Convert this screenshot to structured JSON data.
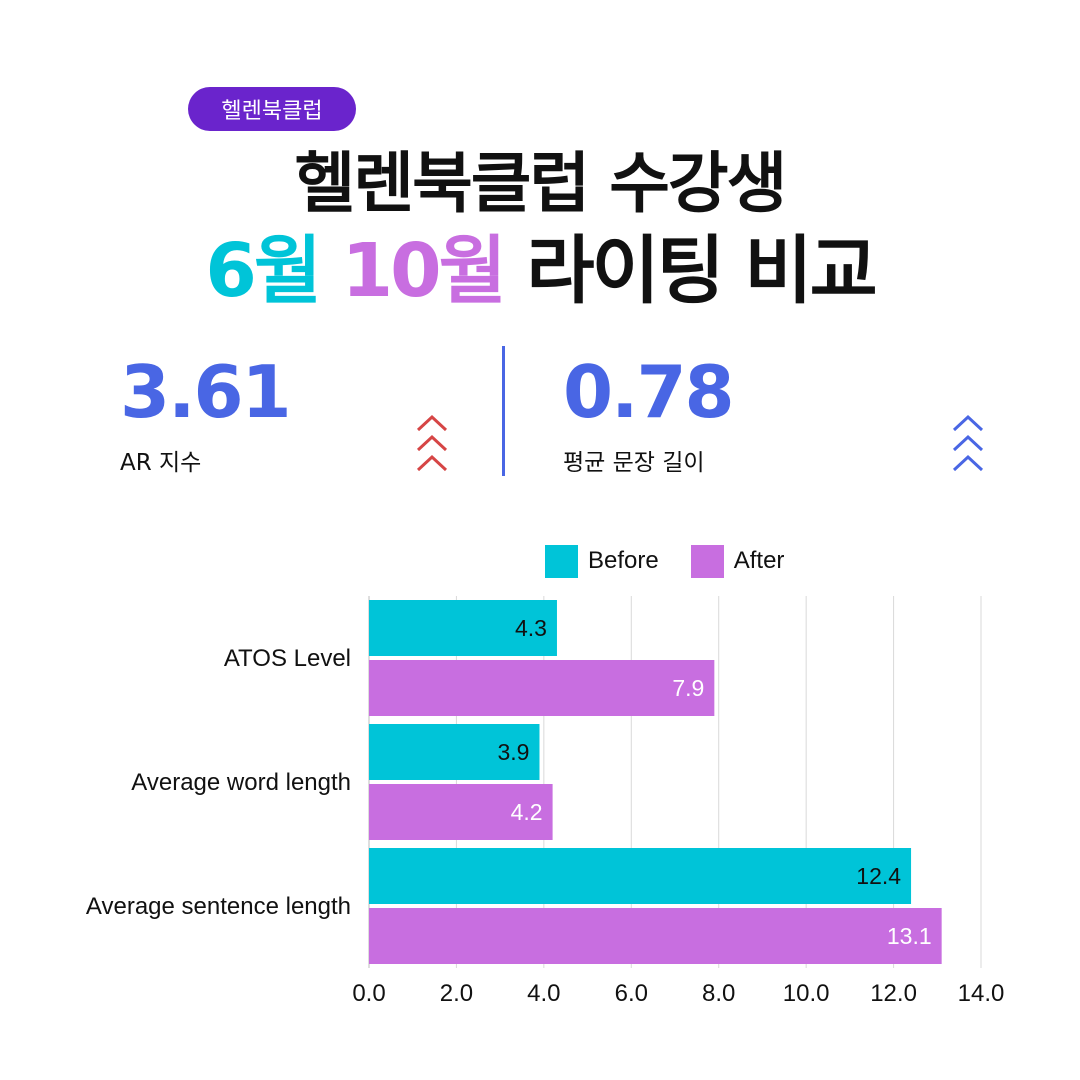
{
  "badge": "헬렌북클럽",
  "title": {
    "line1": "헬렌북클럽 수강생",
    "month_before": "6월",
    "month_after": "10월",
    "rest": "라이팅 비교"
  },
  "stats": [
    {
      "value": "3.61",
      "label": "AR 지수",
      "arrow_color": "#d64545"
    },
    {
      "value": "0.78",
      "label": "평균 문장 길이",
      "arrow_color": "#4966e4"
    }
  ],
  "colors": {
    "accent": "#4966e4",
    "before": "#00c4d8",
    "after": "#c86ee0",
    "badge": "#6a24cc"
  },
  "chart_data": {
    "type": "bar",
    "orientation": "horizontal",
    "categories": [
      "ATOS Level",
      "Average word length",
      "Average sentence length"
    ],
    "series": [
      {
        "name": "Before",
        "values": [
          4.3,
          3.9,
          12.4
        ],
        "color": "#00c4d8"
      },
      {
        "name": "After",
        "values": [
          7.9,
          4.2,
          13.1
        ],
        "color": "#c86ee0"
      }
    ],
    "xlim": [
      0,
      14
    ],
    "xticks": [
      "0.0",
      "2.0",
      "4.0",
      "6.0",
      "8.0",
      "10.0",
      "12.0",
      "14.0"
    ],
    "data_labels": [
      [
        "4.3",
        "3.9",
        "12.4"
      ],
      [
        "7.9",
        "4.2",
        "13.1"
      ]
    ],
    "grid": "vertical",
    "legend_position": "top"
  }
}
